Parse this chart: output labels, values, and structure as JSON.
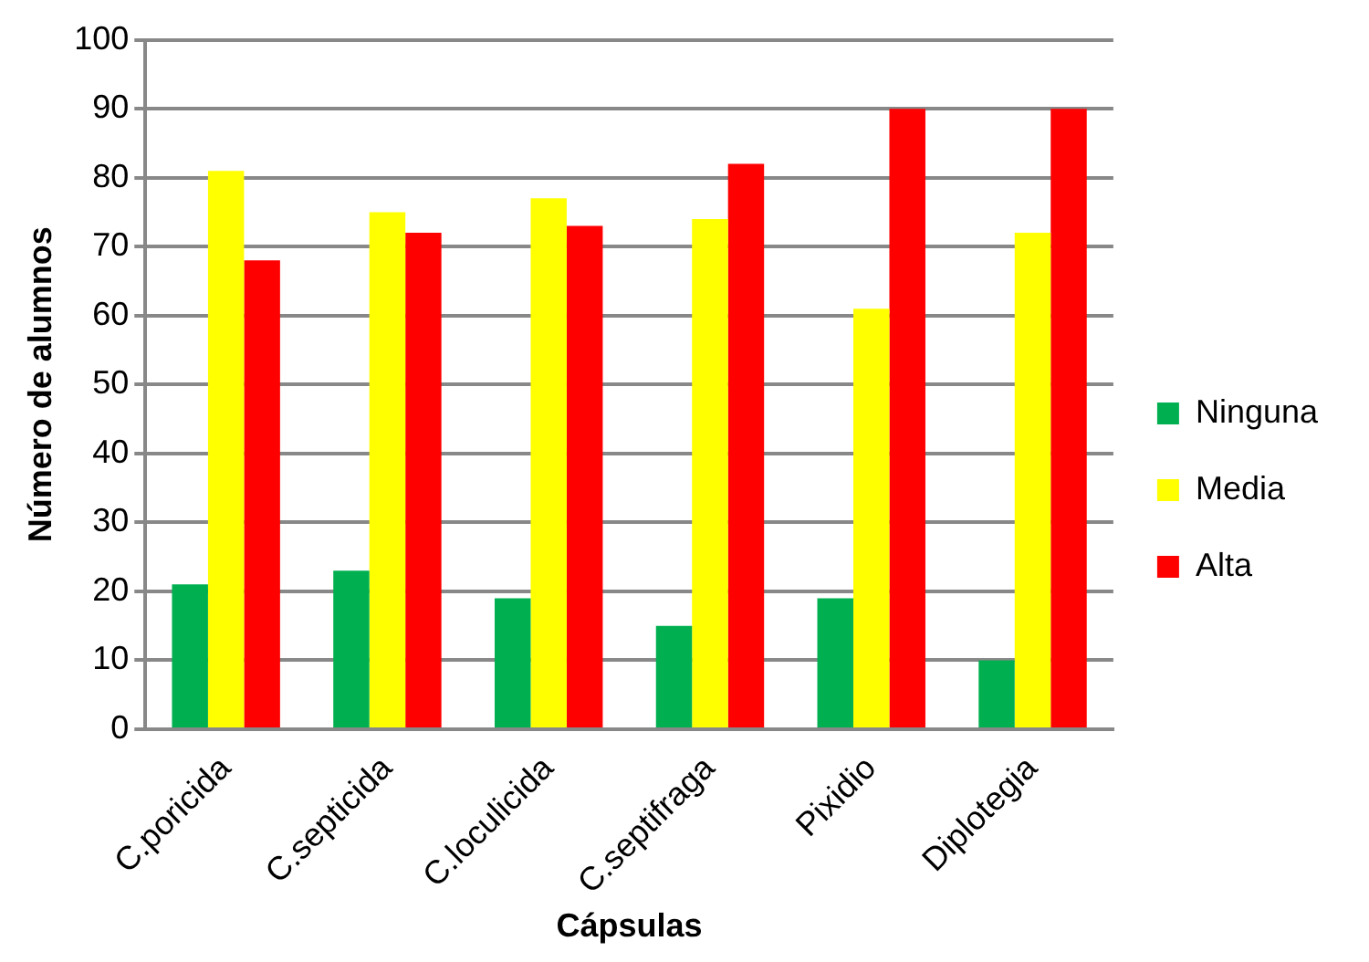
{
  "chart_data": {
    "type": "bar",
    "xlabel": "Cápsulas",
    "ylabel": "Número de alumnos",
    "categories": [
      "C.poricida",
      "C.septicida",
      "C.loculicida",
      "C.septifraga",
      "Pixidio",
      "Diplotegia"
    ],
    "series": [
      {
        "name": "Ninguna",
        "color": "#00b050",
        "values": [
          21,
          23,
          19,
          15,
          19,
          10
        ]
      },
      {
        "name": "Media",
        "color": "#ffff00",
        "values": [
          81,
          75,
          77,
          74,
          61,
          72
        ]
      },
      {
        "name": "Alta",
        "color": "#ff0000",
        "values": [
          68,
          72,
          73,
          82,
          90,
          90
        ]
      }
    ],
    "ylim": [
      0,
      100
    ],
    "yticks": [
      0,
      10,
      20,
      30,
      40,
      50,
      60,
      70,
      80,
      90,
      100
    ],
    "grid": "y",
    "legend": "right"
  }
}
